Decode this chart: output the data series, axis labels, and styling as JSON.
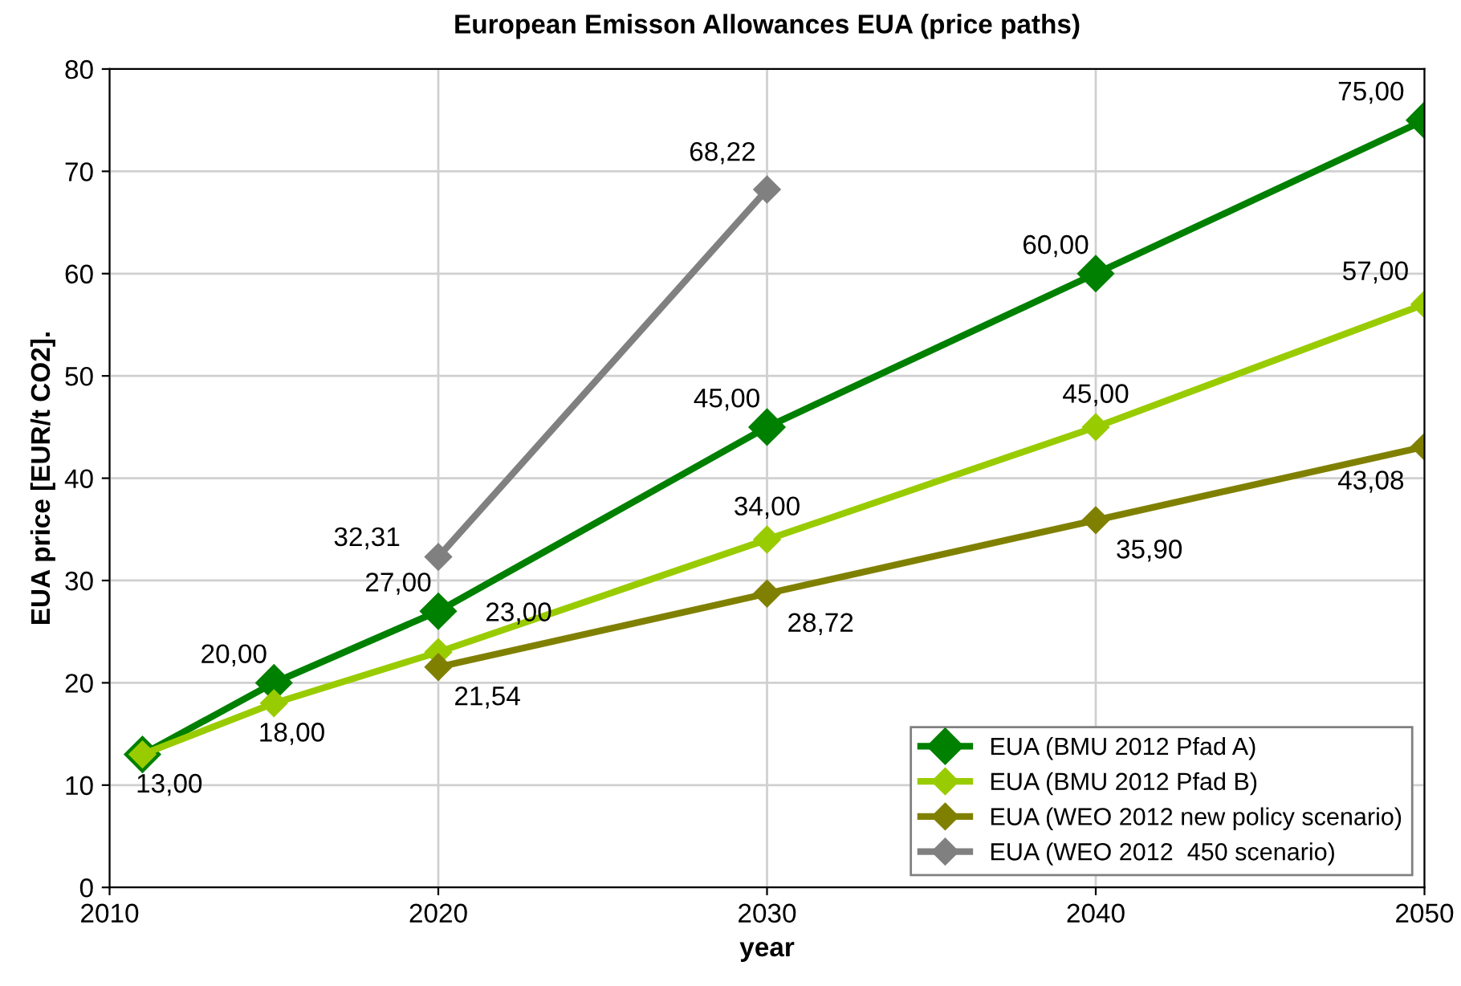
{
  "chart_data": {
    "type": "line",
    "title": "European Emisson Allowances EUA (price paths)",
    "xlabel": "year",
    "ylabel": "EUA price [EUR/t CO2].",
    "xlim": [
      2010,
      2050
    ],
    "xticks": [
      2010,
      2020,
      2030,
      2040,
      2050
    ],
    "ylim": [
      0,
      80
    ],
    "yticks": [
      0,
      10,
      20,
      30,
      40,
      50,
      60,
      70,
      80
    ],
    "grid": true,
    "legend": "bottom right",
    "marker": "diamond",
    "line_style": "solid",
    "series": [
      {
        "name": "EUA (BMU 2012 Pfad A)",
        "color": "#008000",
        "x": [
          2011,
          2015,
          2020,
          2030,
          2040,
          2050
        ],
        "values": [
          13,
          20,
          27,
          45,
          60,
          75
        ],
        "value_labels": [
          null,
          "20,00",
          "27,00",
          "45,00",
          "60,00",
          "75,00"
        ]
      },
      {
        "name": "EUA (BMU 2012 Pfad B)",
        "color": "#99cc00",
        "x": [
          2011,
          2015,
          2020,
          2030,
          2040,
          2050
        ],
        "values": [
          13,
          18,
          23,
          34,
          45,
          57
        ],
        "value_labels": [
          "13,00",
          "18,00",
          "23,00",
          "34,00",
          "45,00",
          "57,00"
        ]
      },
      {
        "name": "EUA (WEO 2012 new policy scenario)",
        "color": "#808000",
        "x": [
          2020,
          2030,
          2040,
          2050
        ],
        "values": [
          21.54,
          28.72,
          35.9,
          43.08
        ],
        "value_labels": [
          "21,54",
          "28,72",
          "35,90",
          "43,08"
        ]
      },
      {
        "name": "EUA (WEO 2012  450 scenario)",
        "color": "#808080",
        "x": [
          2020,
          2030
        ],
        "values": [
          32.31,
          68.22
        ],
        "value_labels": [
          "32,31",
          "68,22"
        ]
      }
    ]
  }
}
